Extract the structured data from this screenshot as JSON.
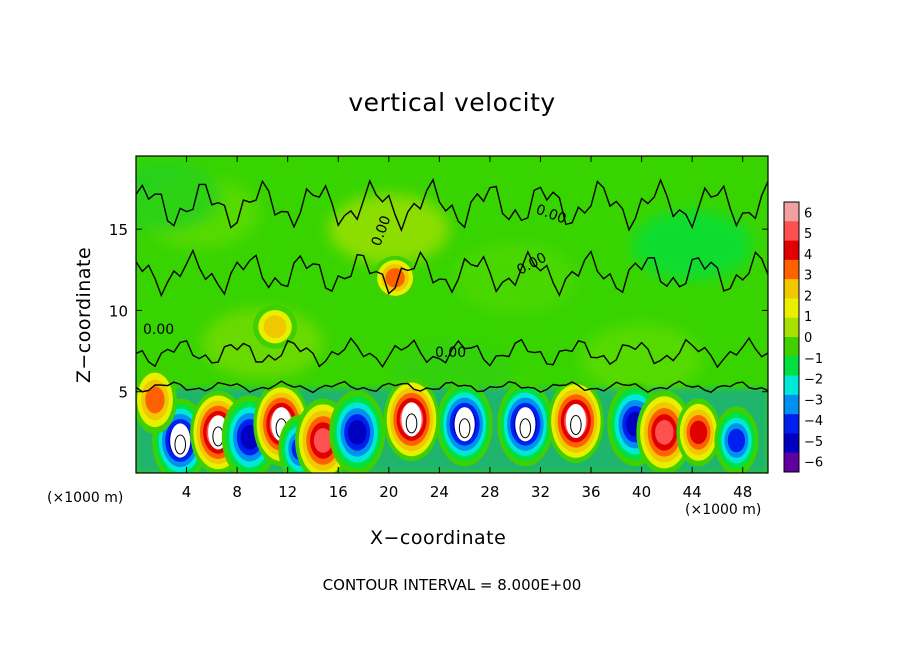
{
  "chart_data": {
    "type": "heatmap",
    "title": "vertical velocity",
    "xlabel": "X−coordinate",
    "ylabel": "Z−coordinate",
    "x_unit_label": "(×1000 m)",
    "footer": "CONTOUR INTERVAL = 8.000E+00",
    "xlim": [
      0,
      50
    ],
    "ylim": [
      0,
      19.5
    ],
    "x_ticks": [
      "4",
      "8",
      "12",
      "16",
      "20",
      "24",
      "28",
      "32",
      "36",
      "40",
      "44",
      "48"
    ],
    "y_ticks": [
      "5",
      "10",
      "15"
    ],
    "colorbar": {
      "ticks": [
        "6",
        "5",
        "4",
        "3",
        "2",
        "1",
        "0",
        "−1",
        "−2",
        "−3",
        "−4",
        "−5",
        "−6"
      ],
      "range": [
        -6,
        6
      ],
      "colors": [
        "#f0a0a0",
        "#ff5050",
        "#e00000",
        "#ff6000",
        "#f0c800",
        "#e8f000",
        "#a8e000",
        "#40d000",
        "#00e040",
        "#00e8d8",
        "#0090f0",
        "#0020f0",
        "#0000c0",
        "#6000a0"
      ]
    },
    "contour_labels": [
      "0.00",
      "0.00",
      "0.00",
      "0.00",
      "0.00"
    ],
    "cells": [
      {
        "x": 3.5,
        "z": 2.0,
        "w": -6
      },
      {
        "x": 6.5,
        "z": 2.5,
        "w": 6
      },
      {
        "x": 9.0,
        "z": 2.2,
        "w": -5
      },
      {
        "x": 11.5,
        "z": 3.0,
        "w": 6
      },
      {
        "x": 13.0,
        "z": 1.5,
        "w": -4
      },
      {
        "x": 14.8,
        "z": 2.0,
        "w": 5
      },
      {
        "x": 17.5,
        "z": 2.5,
        "w": -5
      },
      {
        "x": 21.8,
        "z": 3.3,
        "w": 6
      },
      {
        "x": 26.0,
        "z": 3.0,
        "w": -6
      },
      {
        "x": 30.8,
        "z": 3.0,
        "w": -6
      },
      {
        "x": 34.8,
        "z": 3.2,
        "w": 6
      },
      {
        "x": 39.5,
        "z": 3.0,
        "w": -5
      },
      {
        "x": 41.8,
        "z": 2.5,
        "w": 5
      },
      {
        "x": 44.5,
        "z": 2.5,
        "w": 4
      },
      {
        "x": 47.5,
        "z": 2.0,
        "w": -4
      },
      {
        "x": 1.5,
        "z": 4.5,
        "w": 3
      },
      {
        "x": 20.5,
        "z": 12.0,
        "w": 3
      },
      {
        "x": 11.0,
        "z": 9.0,
        "w": 2
      }
    ]
  }
}
